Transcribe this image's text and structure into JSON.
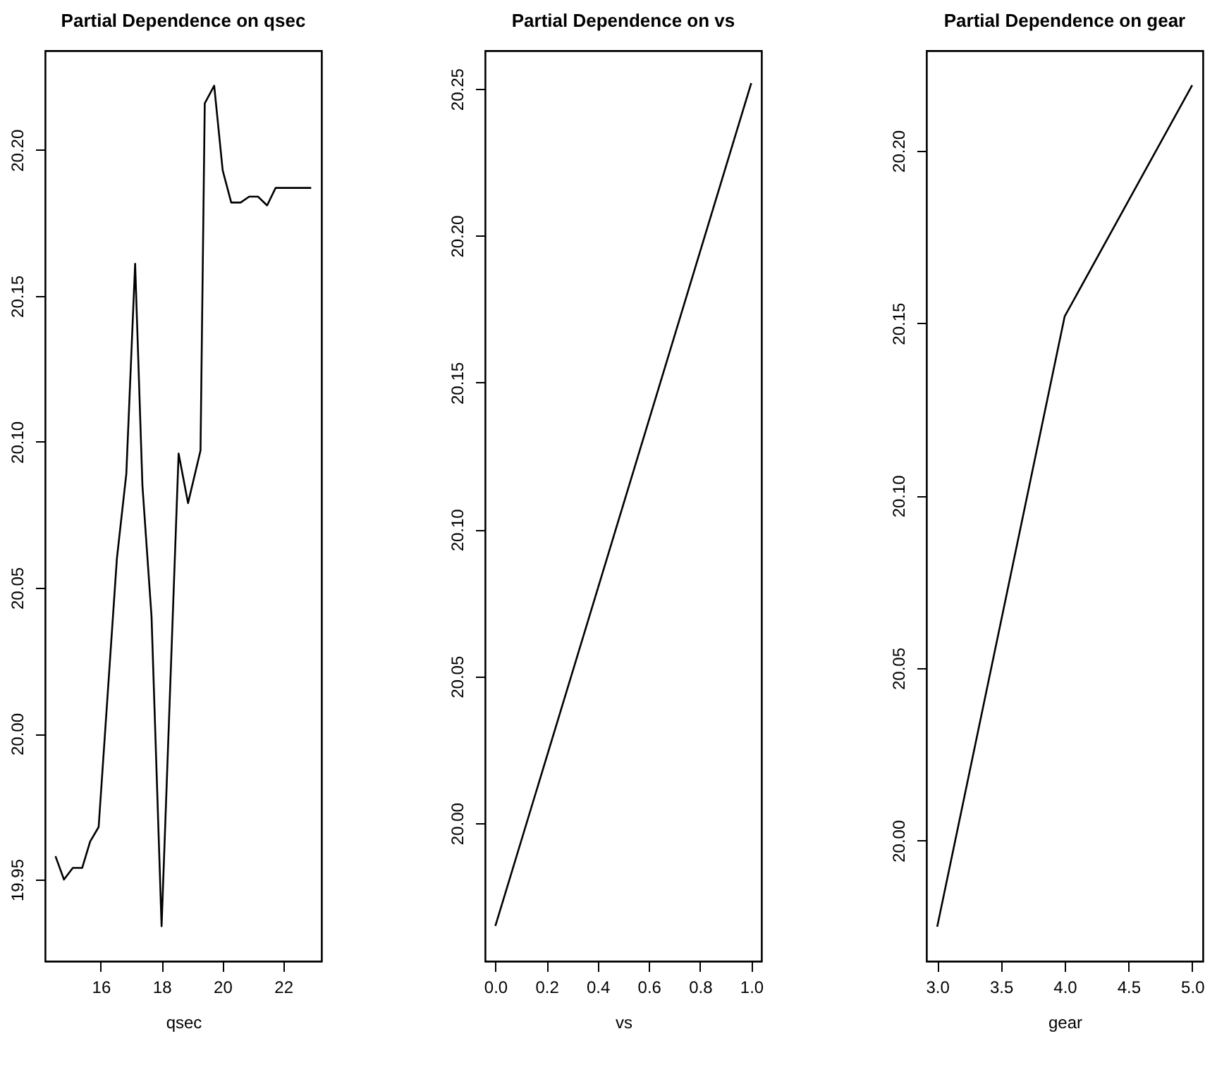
{
  "chart_data": [
    {
      "type": "line",
      "title": "Partial Dependence on qsec",
      "xlabel": "qsec",
      "x": [
        14.51,
        14.79,
        15.08,
        15.39,
        15.65,
        15.93,
        16.53,
        16.84,
        17.13,
        17.37,
        17.67,
        18.0,
        18.56,
        18.87,
        19.28,
        19.42,
        19.73,
        20.01,
        20.29,
        20.6,
        20.88,
        21.17,
        21.47,
        21.75,
        22.92
      ],
      "values": [
        19.958,
        19.95,
        19.954,
        19.954,
        19.963,
        19.968,
        20.06,
        20.089,
        20.161,
        20.085,
        20.04,
        19.934,
        20.096,
        20.079,
        20.097,
        20.216,
        20.222,
        20.193,
        20.182,
        20.182,
        20.184,
        20.184,
        20.181,
        20.187,
        20.187
      ],
      "color": "#000000",
      "xlim": [
        14.17,
        23.26
      ],
      "ylim": [
        19.922,
        20.234
      ],
      "xticks": [
        16,
        18,
        20,
        22
      ],
      "yticks": [
        19.95,
        {
          "value": 20.0,
          "label": "20.00"
        },
        20.05,
        {
          "value": 20.1,
          "label": "20.10"
        },
        20.15,
        {
          "value": 20.2,
          "label": "20.20"
        }
      ],
      "grid": false,
      "marker": "none",
      "line_style": "solid"
    },
    {
      "type": "line",
      "title": "Partial Dependence on vs",
      "xlabel": "vs",
      "x": [
        0,
        1
      ],
      "values": [
        19.965,
        20.252
      ],
      "color": "#000000",
      "xlim": [
        -0.04,
        1.04
      ],
      "ylim": [
        19.953,
        20.263
      ],
      "xticks": [
        {
          "value": 0,
          "label": "0.0"
        },
        0.2,
        0.4,
        0.6,
        0.8,
        {
          "value": 1,
          "label": "1.0"
        }
      ],
      "yticks": [
        {
          "value": 20.0,
          "label": "20.00"
        },
        20.05,
        {
          "value": 20.1,
          "label": "20.10"
        },
        20.15,
        {
          "value": 20.2,
          "label": "20.20"
        },
        20.25
      ],
      "grid": false,
      "marker": "none",
      "line_style": "solid"
    },
    {
      "type": "line",
      "title": "Partial Dependence on gear",
      "xlabel": "gear",
      "x": [
        3,
        4,
        5
      ],
      "values": [
        19.975,
        20.152,
        20.219
      ],
      "color": "#000000",
      "xlim": [
        2.916,
        5.084
      ],
      "ylim": [
        19.965,
        20.229
      ],
      "xticks": [
        {
          "value": 3,
          "label": "3.0"
        },
        3.5,
        {
          "value": 4,
          "label": "4.0"
        },
        4.5,
        {
          "value": 5,
          "label": "5.0"
        }
      ],
      "yticks": [
        {
          "value": 20.0,
          "label": "20.00"
        },
        20.05,
        {
          "value": 20.1,
          "label": "20.10"
        },
        20.15,
        {
          "value": 20.2,
          "label": "20.20"
        }
      ],
      "grid": false,
      "marker": "none",
      "line_style": "solid"
    }
  ]
}
